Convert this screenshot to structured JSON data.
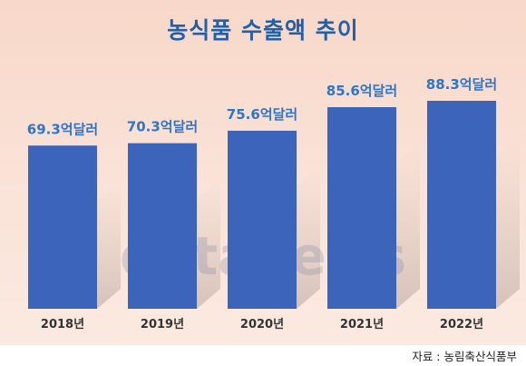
{
  "title": "농식품 수출액 추이",
  "source": "자료 : 농림축산식품부",
  "watermark": "datanews",
  "colors": {
    "bar": "#3d64bb",
    "value_label": "#2e75c8",
    "title": "#2160a8"
  },
  "chart_data": {
    "type": "bar",
    "title": "농식품 수출액 추이",
    "categories": [
      "2018년",
      "2019년",
      "2020년",
      "2021년",
      "2022년"
    ],
    "values": [
      69.3,
      70.3,
      75.6,
      85.6,
      88.3
    ],
    "data_labels": [
      "69.3억달러",
      "70.3억달러",
      "75.6억달러",
      "85.6억달러",
      "88.3억달러"
    ],
    "xlabel": "",
    "ylabel": "",
    "grid": false
  }
}
